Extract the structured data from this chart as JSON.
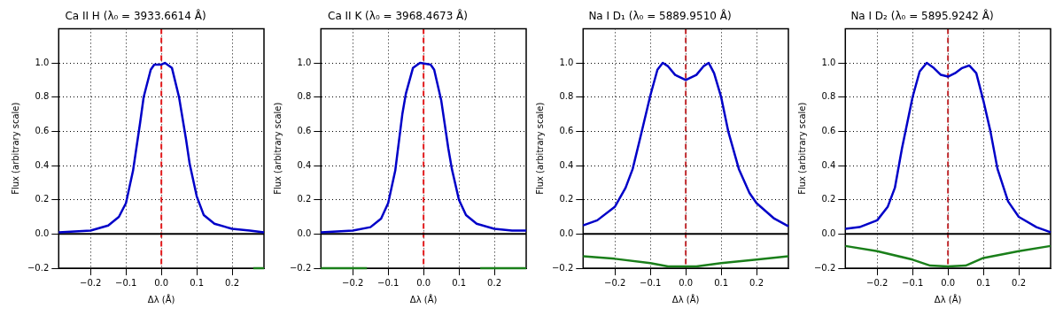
{
  "chart_data": [
    {
      "type": "line",
      "title": "Ca II H (λ₀ = 3933.6614 Å)",
      "xlabel": "Δλ (Å)",
      "ylabel": "Flux (arbitrary scale)",
      "xlim": [
        -0.29,
        0.29
      ],
      "ylim": [
        -0.2,
        1.2
      ],
      "xticks": [
        {
          "value": -0.2,
          "label": "−0.2"
        },
        {
          "value": -0.1,
          "label": "−0.1"
        },
        {
          "value": 0,
          "label": "0.0"
        },
        {
          "value": 0.1,
          "label": "0.1"
        },
        {
          "value": 0.2,
          "label": "0.2"
        }
      ],
      "yticks": [
        {
          "value": -0.2,
          "label": "−0.2"
        },
        {
          "value": 0,
          "label": "0.0"
        },
        {
          "value": 0.2,
          "label": "0.2"
        },
        {
          "value": 0.4,
          "label": "0.4"
        },
        {
          "value": 0.6,
          "label": "0.6"
        },
        {
          "value": 0.8,
          "label": "0.8"
        },
        {
          "value": 1.0,
          "label": "1.0"
        }
      ],
      "grid": true,
      "ref_lines": [
        {
          "axis": "x",
          "value": 0,
          "color": "#e41a1c",
          "line_style": "dashed"
        },
        {
          "axis": "y",
          "value": 0,
          "color": "#000000",
          "line_style": "solid"
        }
      ],
      "series": [
        {
          "color": "#0000c8",
          "x": [
            -0.29,
            -0.2,
            -0.15,
            -0.12,
            -0.1,
            -0.08,
            -0.06,
            -0.05,
            -0.03,
            -0.02,
            0,
            0.01,
            0.03,
            0.05,
            0.07,
            0.08,
            0.1,
            0.12,
            0.15,
            0.2,
            0.25,
            0.29
          ],
          "values": [
            0.01,
            0.02,
            0.05,
            0.1,
            0.18,
            0.37,
            0.65,
            0.8,
            0.96,
            0.99,
            0.99,
            1.0,
            0.97,
            0.8,
            0.55,
            0.41,
            0.22,
            0.11,
            0.06,
            0.03,
            0.02,
            0.01
          ]
        },
        {
          "color": "#1a7f1a",
          "x": [
            0.26,
            0.29
          ],
          "values": [
            -0.2,
            -0.2
          ]
        }
      ]
    },
    {
      "type": "line",
      "title": "Ca II K (λ₀ = 3968.4673 Å)",
      "xlabel": "Δλ (Å)",
      "ylabel": "Flux (arbitrary scale)",
      "xlim": [
        -0.29,
        0.29
      ],
      "ylim": [
        -0.2,
        1.2
      ],
      "xticks": [
        {
          "value": -0.2,
          "label": "−0.2"
        },
        {
          "value": -0.1,
          "label": "−0.1"
        },
        {
          "value": 0,
          "label": "0.0"
        },
        {
          "value": 0.1,
          "label": "0.1"
        },
        {
          "value": 0.2,
          "label": "0.2"
        }
      ],
      "yticks": [
        {
          "value": -0.2,
          "label": "−0.2"
        },
        {
          "value": 0,
          "label": "0.0"
        },
        {
          "value": 0.2,
          "label": "0.2"
        },
        {
          "value": 0.4,
          "label": "0.4"
        },
        {
          "value": 0.6,
          "label": "0.6"
        },
        {
          "value": 0.8,
          "label": "0.8"
        },
        {
          "value": 1.0,
          "label": "1.0"
        }
      ],
      "grid": true,
      "ref_lines": [
        {
          "axis": "x",
          "value": 0,
          "color": "#e41a1c",
          "line_style": "dashed"
        },
        {
          "axis": "y",
          "value": 0,
          "color": "#000000",
          "line_style": "solid"
        }
      ],
      "series": [
        {
          "color": "#0000c8",
          "x": [
            -0.29,
            -0.2,
            -0.15,
            -0.12,
            -0.1,
            -0.08,
            -0.06,
            -0.05,
            -0.03,
            -0.01,
            0.02,
            0.03,
            0.05,
            0.07,
            0.08,
            0.1,
            0.12,
            0.15,
            0.2,
            0.25,
            0.29
          ],
          "values": [
            0.01,
            0.02,
            0.04,
            0.09,
            0.18,
            0.37,
            0.7,
            0.82,
            0.97,
            1.0,
            0.99,
            0.96,
            0.78,
            0.5,
            0.38,
            0.2,
            0.11,
            0.06,
            0.03,
            0.02,
            0.02
          ]
        },
        {
          "color": "#1a7f1a",
          "x": [
            -0.29,
            -0.16,
            0,
            0.16,
            0.29
          ],
          "values": [
            -0.2,
            -0.2,
            null,
            -0.2,
            -0.2
          ]
        }
      ]
    },
    {
      "type": "line",
      "title": "Na I D₁ (λ₀ = 5889.9510 Å)",
      "xlabel": "Δλ (Å)",
      "ylabel": "Flux (arbitrary scale)",
      "xlim": [
        -0.29,
        0.29
      ],
      "ylim": [
        -0.2,
        1.2
      ],
      "xticks": [
        {
          "value": -0.2,
          "label": "−0.2"
        },
        {
          "value": -0.1,
          "label": "−0.1"
        },
        {
          "value": 0,
          "label": "0.0"
        },
        {
          "value": 0.1,
          "label": "0.1"
        },
        {
          "value": 0.2,
          "label": "0.2"
        }
      ],
      "yticks": [
        {
          "value": -0.2,
          "label": "−0.2"
        },
        {
          "value": 0,
          "label": "0.0"
        },
        {
          "value": 0.2,
          "label": "0.2"
        },
        {
          "value": 0.4,
          "label": "0.4"
        },
        {
          "value": 0.6,
          "label": "0.6"
        },
        {
          "value": 0.8,
          "label": "0.8"
        },
        {
          "value": 1.0,
          "label": "1.0"
        }
      ],
      "grid": true,
      "ref_lines": [
        {
          "axis": "x",
          "value": 0,
          "color": "#c0282c",
          "line_style": "dashed"
        },
        {
          "axis": "y",
          "value": 0,
          "color": "#000000",
          "line_style": "solid"
        }
      ],
      "series": [
        {
          "color": "#0000c8",
          "x": [
            -0.29,
            -0.25,
            -0.2,
            -0.17,
            -0.15,
            -0.13,
            -0.1,
            -0.08,
            -0.065,
            -0.05,
            -0.03,
            0,
            0.03,
            0.05,
            0.065,
            0.08,
            0.1,
            0.12,
            0.15,
            0.18,
            0.2,
            0.25,
            0.29
          ],
          "values": [
            0.05,
            0.08,
            0.16,
            0.27,
            0.38,
            0.55,
            0.81,
            0.96,
            1.0,
            0.98,
            0.93,
            0.9,
            0.93,
            0.98,
            1.0,
            0.94,
            0.8,
            0.6,
            0.38,
            0.24,
            0.18,
            0.09,
            0.045
          ]
        },
        {
          "color": "#1a7f1a",
          "x": [
            -0.29,
            -0.2,
            -0.1,
            -0.05,
            0,
            0.03,
            0.1,
            0.2,
            0.29
          ],
          "values": [
            -0.13,
            -0.145,
            -0.17,
            -0.19,
            -0.19,
            -0.19,
            -0.17,
            -0.15,
            -0.13
          ]
        }
      ]
    },
    {
      "type": "line",
      "title": "Na I D₂ (λ₀ = 5895.9242 Å)",
      "xlabel": "Δλ (Å)",
      "ylabel": "Flux (arbitrary scale)",
      "xlim": [
        -0.29,
        0.29
      ],
      "ylim": [
        -0.2,
        1.2
      ],
      "xticks": [
        {
          "value": -0.2,
          "label": "−0.2"
        },
        {
          "value": -0.1,
          "label": "−0.1"
        },
        {
          "value": 0,
          "label": "0.0"
        },
        {
          "value": 0.1,
          "label": "0.1"
        },
        {
          "value": 0.2,
          "label": "0.2"
        }
      ],
      "yticks": [
        {
          "value": -0.2,
          "label": "−0.2"
        },
        {
          "value": 0,
          "label": "0.0"
        },
        {
          "value": 0.2,
          "label": "0.2"
        },
        {
          "value": 0.4,
          "label": "0.4"
        },
        {
          "value": 0.6,
          "label": "0.6"
        },
        {
          "value": 0.8,
          "label": "0.8"
        },
        {
          "value": 1.0,
          "label": "1.0"
        }
      ],
      "grid": true,
      "ref_lines": [
        {
          "axis": "x",
          "value": 0,
          "color": "#c0282c",
          "line_style": "dashed"
        },
        {
          "axis": "y",
          "value": 0,
          "color": "#000000",
          "line_style": "solid"
        }
      ],
      "series": [
        {
          "color": "#0000c8",
          "x": [
            -0.29,
            -0.25,
            -0.2,
            -0.17,
            -0.15,
            -0.13,
            -0.1,
            -0.08,
            -0.06,
            -0.04,
            -0.02,
            0,
            0.02,
            0.04,
            0.06,
            0.08,
            0.1,
            0.12,
            0.14,
            0.17,
            0.2,
            0.25,
            0.29
          ],
          "values": [
            0.03,
            0.04,
            0.08,
            0.16,
            0.27,
            0.5,
            0.8,
            0.95,
            1.0,
            0.97,
            0.93,
            0.92,
            0.94,
            0.97,
            0.985,
            0.94,
            0.78,
            0.6,
            0.38,
            0.19,
            0.1,
            0.04,
            0.01
          ]
        },
        {
          "color": "#1a7f1a",
          "x": [
            -0.29,
            -0.2,
            -0.1,
            -0.05,
            0,
            0.05,
            0.1,
            0.2,
            0.29
          ],
          "values": [
            -0.07,
            -0.1,
            -0.15,
            -0.185,
            -0.19,
            -0.185,
            -0.14,
            -0.1,
            -0.07
          ]
        }
      ]
    }
  ]
}
